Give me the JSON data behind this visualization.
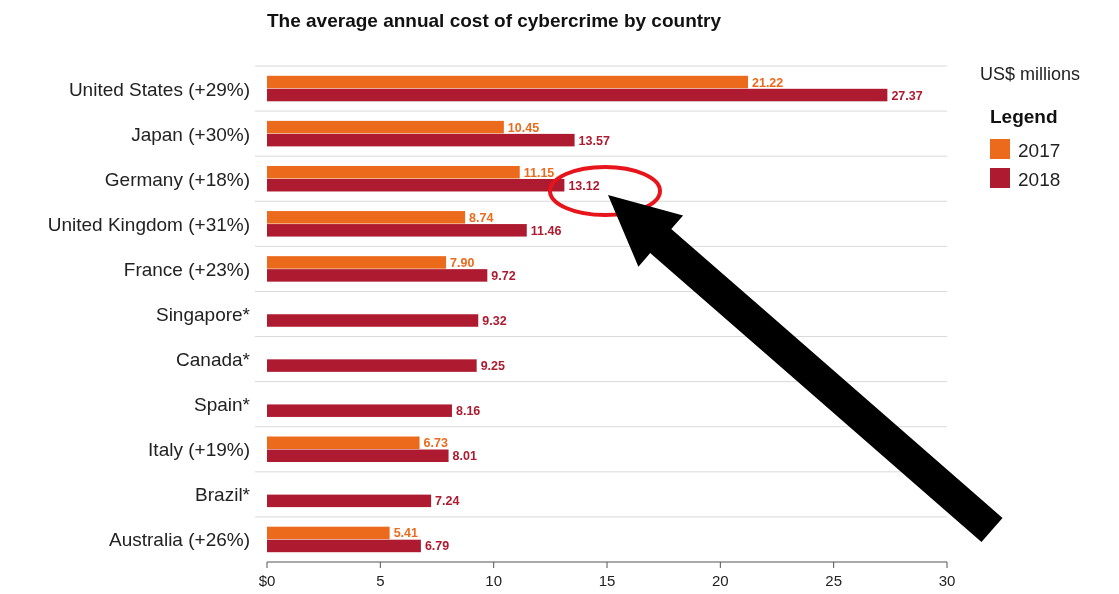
{
  "chart_data": {
    "type": "bar",
    "orientation": "horizontal",
    "title": "The average annual cost of cybercrime by country",
    "categories": [
      "United States (+29%)",
      "Japan (+30%)",
      "Germany (+18%)",
      "United Kingdom (+31%)",
      "France (+23%)",
      "Singapore*",
      "Canada*",
      "Spain*",
      "Italy (+19%)",
      "Brazil*",
      "Australia (+26%)"
    ],
    "series": [
      {
        "name": "2017",
        "color": "#ec6a1c",
        "values": [
          21.22,
          10.45,
          11.15,
          8.74,
          7.9,
          null,
          null,
          null,
          6.73,
          null,
          5.41
        ]
      },
      {
        "name": "2018",
        "color": "#ae1a2f",
        "values": [
          27.37,
          13.57,
          13.12,
          11.46,
          9.72,
          9.32,
          9.25,
          8.16,
          8.01,
          7.24,
          6.79
        ]
      }
    ],
    "value_labels": [
      [
        "21.22",
        "10.45",
        "11.15",
        "8.74",
        "7.90",
        null,
        null,
        null,
        "6.73",
        null,
        "5.41"
      ],
      [
        "27.37",
        "13.57",
        "13.12",
        "11.46",
        "9.72",
        "9.32",
        "9.25",
        "8.16",
        "8.01",
        "7.24",
        "6.79"
      ]
    ],
    "xlim": [
      0,
      30
    ],
    "xticks": [
      {
        "value": 0,
        "label": "$0"
      },
      5,
      10,
      15,
      20,
      25,
      30
    ],
    "grid": "y",
    "legend": "right",
    "legend_title": "Legend",
    "annotations": [
      "US$ millions"
    ]
  }
}
